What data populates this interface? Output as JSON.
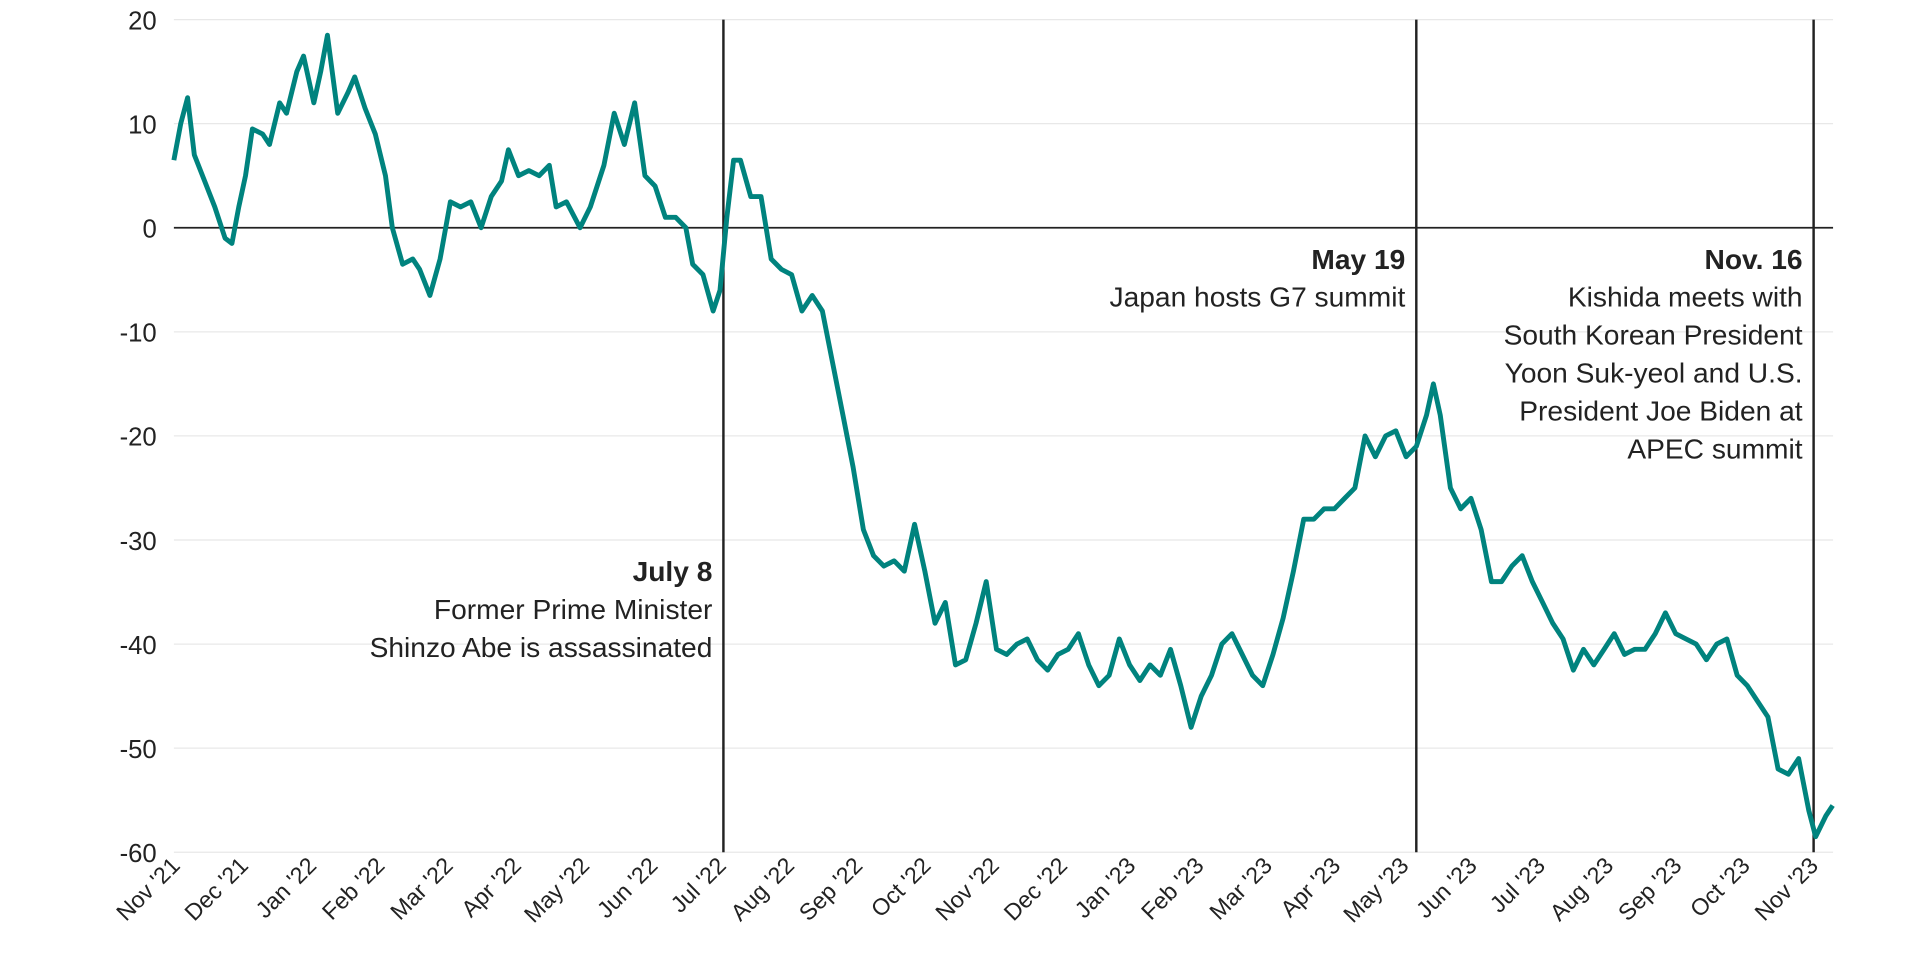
{
  "chart_data": {
    "type": "line",
    "title": "",
    "xlabel": "",
    "ylabel": "",
    "ylim": [
      -60,
      20
    ],
    "yticks": [
      20,
      10,
      0,
      -10,
      -20,
      -30,
      -40,
      -50,
      -60
    ],
    "grid": true,
    "x_unit": "months since Nov 1, 2021",
    "xlim": [
      0,
      24.4
    ],
    "xtick_labels": [
      "Nov '21",
      "Dec '21",
      "Jan '22",
      "Feb '22",
      "Mar '22",
      "Apr '22",
      "May '22",
      "Jun '22",
      "Jul '22",
      "Aug '22",
      "Sep '22",
      "Oct '22",
      "Nov '22",
      "Dec '22",
      "Jan '23",
      "Feb '23",
      "Mar '23",
      "Apr '23",
      "May '23",
      "Jun '23",
      "Jul '23",
      "Aug '23",
      "Sep '23",
      "Oct '23",
      "Nov '23"
    ],
    "colors": {
      "line": "#00837e",
      "zero": "#222222",
      "grid": "#e8e8e8",
      "event": "#222222"
    },
    "series": [
      {
        "name": "value",
        "x": [
          0,
          0.1,
          0.2,
          0.3,
          0.45,
          0.6,
          0.75,
          0.85,
          0.95,
          1.05,
          1.15,
          1.3,
          1.4,
          1.55,
          1.65,
          1.8,
          1.9,
          2.05,
          2.15,
          2.25,
          2.4,
          2.55,
          2.65,
          2.8,
          2.95,
          3.1,
          3.2,
          3.35,
          3.5,
          3.6,
          3.75,
          3.9,
          4.05,
          4.2,
          4.35,
          4.5,
          4.65,
          4.8,
          4.9,
          5.05,
          5.2,
          5.35,
          5.5,
          5.6,
          5.75,
          5.95,
          6.1,
          6.3,
          6.45,
          6.6,
          6.75,
          6.9,
          7.05,
          7.2,
          7.35,
          7.5,
          7.6,
          7.75,
          7.9,
          8.0,
          8.1,
          8.2,
          8.3,
          8.45,
          8.6,
          8.75,
          8.9,
          9.05,
          9.2,
          9.35,
          9.5,
          9.65,
          9.8,
          9.95,
          10.1,
          10.25,
          10.4,
          10.55,
          10.7,
          10.85,
          11.0,
          11.15,
          11.3,
          11.45,
          11.6,
          11.75,
          11.9,
          12.05,
          12.2,
          12.35,
          12.5,
          12.65,
          12.8,
          12.95,
          13.1,
          13.25,
          13.4,
          13.55,
          13.7,
          13.85,
          14.0,
          14.15,
          14.3,
          14.45,
          14.6,
          14.75,
          14.9,
          15.05,
          15.2,
          15.35,
          15.5,
          15.65,
          15.8,
          15.95,
          16.1,
          16.25,
          16.4,
          16.55,
          16.7,
          16.85,
          17.0,
          17.15,
          17.3,
          17.45,
          17.6,
          17.75,
          17.9,
          18.05,
          18.2,
          18.35,
          18.45,
          18.55,
          18.7,
          18.85,
          19.0,
          19.15,
          19.3,
          19.45,
          19.6,
          19.75,
          19.9,
          20.05,
          20.2,
          20.35,
          20.5,
          20.65,
          20.8,
          20.95,
          21.1,
          21.25,
          21.4,
          21.55,
          21.7,
          21.85,
          22.0,
          22.15,
          22.3,
          22.45,
          22.6,
          22.75,
          22.9,
          23.05,
          23.2,
          23.35,
          23.5,
          23.65,
          23.8,
          23.95,
          24.05,
          24.2,
          24.3
        ],
        "y": [
          6.5,
          10,
          12.5,
          7,
          4.5,
          2,
          -1,
          -1.5,
          2,
          5,
          9.5,
          9,
          8,
          12,
          11,
          15,
          16.5,
          12,
          15,
          18.5,
          11,
          13,
          14.5,
          11.5,
          9,
          5,
          0,
          -3.5,
          -3,
          -4,
          -6.5,
          -3,
          2.5,
          2,
          2.5,
          0,
          3,
          4.5,
          7.5,
          5,
          5.5,
          5,
          6,
          2,
          2.5,
          0,
          2,
          6,
          11,
          8,
          12,
          5,
          4,
          1,
          1,
          0,
          -3.5,
          -4.5,
          -8,
          -6,
          1,
          6.5,
          6.5,
          3,
          3,
          -3,
          -4,
          -4.5,
          -8,
          -6.5,
          -8,
          -13,
          -18,
          -23,
          -29,
          -31.5,
          -32.5,
          -32,
          -33,
          -28.5,
          -33,
          -38,
          -36,
          -42,
          -41.5,
          -38,
          -34,
          -40.5,
          -41,
          -40,
          -39.5,
          -41.5,
          -42.5,
          -41,
          -40.5,
          -39,
          -42,
          -44,
          -43,
          -39.5,
          -42,
          -43.5,
          -42,
          -43,
          -40.5,
          -44,
          -48,
          -45,
          -43,
          -40,
          -39,
          -41,
          -43,
          -44,
          -41,
          -37.5,
          -33,
          -28,
          -28,
          -27,
          -27,
          -26,
          -25,
          -20,
          -22,
          -20,
          -19.5,
          -22,
          -21,
          -18,
          -15,
          -18,
          -25,
          -27,
          -26,
          -29,
          -34,
          -34,
          -32.5,
          -31.5,
          -34,
          -36,
          -38,
          -39.5,
          -42.5,
          -40.5,
          -42,
          -40.5,
          -39,
          -41,
          -40.5,
          -40.5,
          -39,
          -37,
          -39,
          -39.5,
          -40,
          -41.5,
          -40,
          -39.5,
          -43,
          -44,
          -45.5,
          -47,
          -52,
          -52.5,
          -51,
          -56,
          -58.5,
          -56.5,
          -55.5
        ]
      }
    ],
    "annotations": [
      {
        "x": 8.05,
        "date": "July 8",
        "lines": [
          "Former Prime Minister",
          "Shinzo Abe is assassinated"
        ],
        "label_y": -33
      },
      {
        "x": 18.2,
        "date": "May 19",
        "lines": [
          "Japan hosts G7 summit"
        ],
        "label_y": -3
      },
      {
        "x": 24.02,
        "date": "Nov. 16",
        "lines": [
          "Kishida meets with",
          "South Korean President",
          "Yoon Suk-yeol and U.S.",
          "President Joe Biden at",
          "APEC summit"
        ],
        "label_y": -3
      }
    ]
  }
}
